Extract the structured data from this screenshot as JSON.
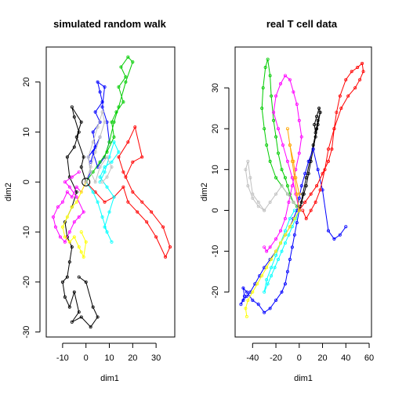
{
  "chart_data": [
    {
      "type": "line",
      "title": "simulated random walk",
      "xlabel": "dim1",
      "ylabel": "dim2",
      "xlim": [
        -17,
        38
      ],
      "ylim": [
        -31,
        27
      ],
      "xticks": [
        -10,
        0,
        10,
        20,
        30
      ],
      "yticks": [
        -30,
        -20,
        -10,
        0,
        10,
        20
      ],
      "circle": [
        0,
        0
      ],
      "grid": false,
      "series": [
        {
          "color": "#000000",
          "x": [
            0,
            -2,
            -1,
            -4,
            -2,
            -6,
            -5,
            -3,
            -5,
            -8,
            -7,
            -4,
            -6,
            -9,
            -8,
            -6,
            -7,
            -8,
            -10,
            -9,
            -7,
            -5,
            -3,
            -6,
            -2,
            2,
            5,
            3,
            0,
            -3
          ],
          "y": [
            0,
            3,
            5,
            9,
            12,
            15,
            13,
            10,
            7,
            5,
            1,
            -2,
            -5,
            -8,
            -11,
            -13,
            -16,
            -19,
            -20,
            -23,
            -25,
            -22,
            -26,
            -28,
            -27,
            -29,
            -27,
            -25,
            -20,
            -19
          ]
        },
        {
          "color": "#0000ff",
          "x": [
            0,
            2,
            1,
            4,
            3,
            6,
            4,
            7,
            6,
            5,
            8,
            7,
            9,
            10,
            8,
            5,
            3,
            6,
            4,
            2
          ],
          "y": [
            0,
            2,
            5,
            7,
            10,
            12,
            14,
            16,
            18,
            20,
            19,
            15,
            12,
            8,
            5,
            3,
            6,
            9,
            7,
            4
          ]
        },
        {
          "color": "#00cc00",
          "x": [
            0,
            3,
            6,
            9,
            12,
            11,
            13,
            16,
            14,
            17,
            15,
            18,
            20,
            17,
            14,
            12,
            10,
            8
          ],
          "y": [
            0,
            2,
            4,
            6,
            9,
            12,
            14,
            16,
            19,
            21,
            23,
            25,
            24,
            20,
            15,
            12,
            8,
            5
          ]
        },
        {
          "color": "#ff0000",
          "x": [
            0,
            4,
            8,
            12,
            16,
            18,
            22,
            26,
            30,
            34,
            36,
            33,
            28,
            24,
            20,
            16,
            14,
            18,
            21,
            24,
            20,
            17
          ],
          "y": [
            0,
            -2,
            -4,
            -3,
            -1,
            -4,
            -6,
            -8,
            -11,
            -15,
            -13,
            -9,
            -6,
            -4,
            -2,
            2,
            5,
            8,
            11,
            5,
            4,
            1
          ]
        },
        {
          "color": "#00ffff",
          "x": [
            0,
            3,
            5,
            7,
            9,
            11,
            8,
            10,
            12,
            9,
            6,
            8,
            11,
            14,
            12,
            10,
            8,
            6
          ],
          "y": [
            0,
            -2,
            -4,
            -7,
            -10,
            -12,
            -9,
            -6,
            -3,
            -1,
            1,
            3,
            4,
            6,
            8,
            5,
            2,
            0
          ]
        },
        {
          "color": "#ff00ff",
          "x": [
            0,
            -2,
            -4,
            -6,
            -8,
            -10,
            -12,
            -14,
            -13,
            -11,
            -9,
            -7,
            -5,
            -3,
            -1,
            -4,
            -7,
            -9,
            -6,
            -3
          ],
          "y": [
            0,
            -2,
            -1,
            -3,
            -2,
            -4,
            -5,
            -7,
            -9,
            -11,
            -12,
            -10,
            -8,
            -7,
            -6,
            -3,
            -1,
            0,
            1,
            2
          ]
        },
        {
          "color": "#ffff00",
          "x": [
            0,
            -2,
            -4,
            -6,
            -8,
            -10,
            -9,
            -7,
            -5,
            -3,
            -2,
            -1,
            0,
            -2
          ],
          "y": [
            0,
            -2,
            -4,
            -5,
            -7,
            -9,
            -11,
            -12,
            -11,
            -13,
            -14,
            -15,
            -12,
            -10
          ]
        },
        {
          "color": "#c0c0c0",
          "x": [
            0,
            2,
            4,
            6,
            8,
            7,
            5,
            3,
            1,
            2,
            4,
            6,
            9,
            11,
            9,
            7
          ],
          "y": [
            0,
            3,
            6,
            9,
            12,
            14,
            11,
            8,
            5,
            2,
            0,
            3,
            5,
            3,
            1,
            0
          ]
        }
      ]
    },
    {
      "type": "line",
      "title": "real T cell data",
      "xlabel": "dim1",
      "ylabel": "dim2",
      "xlim": [
        -55,
        62
      ],
      "ylim": [
        -31,
        40
      ],
      "xticks": [
        -40,
        -20,
        0,
        20,
        40,
        60
      ],
      "yticks": [
        -20,
        -10,
        0,
        10,
        20,
        30
      ],
      "grid": false,
      "series": [
        {
          "color": "#000000",
          "x": [
            0,
            2,
            4,
            6,
            8,
            10,
            12,
            14,
            16,
            18,
            17,
            15,
            13,
            14,
            16,
            18,
            15,
            12,
            9,
            6,
            3,
            1,
            0
          ],
          "y": [
            0,
            2,
            4,
            6,
            9,
            12,
            15,
            18,
            21,
            24,
            25,
            23,
            21,
            19,
            22,
            24,
            20,
            16,
            12,
            8,
            4,
            1,
            0
          ]
        },
        {
          "color": "#0000ff",
          "x": [
            0,
            -2,
            -4,
            -6,
            -8,
            -10,
            -12,
            -15,
            -20,
            -25,
            -30,
            -35,
            -40,
            -45,
            -48,
            -47,
            -50,
            -48,
            -45,
            -42,
            -38,
            -34,
            -30,
            -25,
            -20,
            -16,
            -12,
            -8,
            -5,
            -2,
            0,
            2,
            5,
            8,
            12,
            16,
            20,
            25,
            30,
            35,
            40
          ],
          "y": [
            0,
            -3,
            -6,
            -9,
            -12,
            -15,
            -18,
            -20,
            -22,
            -24,
            -25,
            -23,
            -22,
            -20,
            -19,
            -21,
            -23,
            -22,
            -21,
            -20,
            -18,
            -16,
            -14,
            -12,
            -10,
            -8,
            -6,
            -4,
            -2,
            0,
            3,
            6,
            9,
            12,
            15,
            10,
            5,
            -5,
            -7,
            -6,
            -4
          ]
        },
        {
          "color": "#00cc00",
          "x": [
            0,
            -5,
            -10,
            -15,
            -20,
            -25,
            -28,
            -30,
            -32,
            -31,
            -29,
            -27,
            -25,
            -24,
            -22,
            -20,
            -18,
            -15,
            -12,
            -10,
            -8,
            -5,
            -2,
            0
          ],
          "y": [
            0,
            2,
            4,
            6,
            8,
            12,
            16,
            20,
            25,
            30,
            35,
            37,
            33,
            28,
            22,
            18,
            14,
            10,
            8,
            6,
            4,
            2,
            1,
            0
          ]
        },
        {
          "color": "#ff0000",
          "x": [
            0,
            5,
            10,
            15,
            20,
            25,
            28,
            30,
            32,
            35,
            40,
            45,
            50,
            54,
            55,
            52,
            48,
            42,
            36,
            30,
            25,
            22,
            18,
            14,
            10,
            6,
            3
          ],
          "y": [
            0,
            2,
            4,
            6,
            9,
            12,
            15,
            20,
            24,
            28,
            32,
            34,
            35,
            36,
            34,
            32,
            30,
            28,
            25,
            20,
            15,
            10,
            5,
            2,
            0,
            -2,
            0
          ]
        },
        {
          "color": "#00ffff",
          "x": [
            0,
            -3,
            -6,
            -9,
            -12,
            -15,
            -18,
            -21,
            -24,
            -27,
            -30,
            -28,
            -24,
            -20,
            -16,
            -12,
            -8,
            -4
          ],
          "y": [
            0,
            -2,
            -4,
            -6,
            -8,
            -10,
            -12,
            -14,
            -16,
            -18,
            -20,
            -17,
            -14,
            -11,
            -8,
            -5,
            -2,
            0
          ]
        },
        {
          "color": "#ff00ff",
          "x": [
            0,
            -3,
            -6,
            -10,
            -14,
            -18,
            -22,
            -20,
            -16,
            -12,
            -8,
            -5,
            -2,
            0,
            2,
            0,
            -3,
            -6,
            -9,
            -12,
            -16,
            -20,
            -25,
            -28,
            -30
          ],
          "y": [
            0,
            4,
            8,
            12,
            16,
            20,
            24,
            28,
            31,
            33,
            32,
            29,
            26,
            22,
            18,
            14,
            10,
            6,
            2,
            -2,
            -5,
            -7,
            -9,
            -10,
            -9
          ]
        },
        {
          "color": "#ffff00",
          "x": [
            0,
            -4,
            -8,
            -12,
            -16,
            -20,
            -24,
            -28,
            -32,
            -36,
            -40,
            -44,
            -46,
            -45
          ],
          "y": [
            0,
            -2,
            -4,
            -6,
            -8,
            -10,
            -12,
            -14,
            -16,
            -18,
            -20,
            -22,
            -24,
            -26
          ]
        },
        {
          "color": "#c0c0c0",
          "x": [
            0,
            -5,
            -10,
            -15,
            -20,
            -25,
            -30,
            -35,
            -40,
            -42,
            -44,
            -46,
            -44,
            -40,
            -35,
            -30
          ],
          "y": [
            0,
            2,
            4,
            6,
            4,
            2,
            0,
            2,
            4,
            8,
            12,
            10,
            6,
            3,
            1,
            0
          ]
        },
        {
          "color": "#ffa500",
          "x": [
            0,
            -2,
            -4,
            -6,
            -8,
            -10,
            -8,
            -5,
            -3,
            0
          ],
          "y": [
            0,
            4,
            8,
            12,
            16,
            20,
            16,
            12,
            8,
            4
          ]
        }
      ]
    }
  ]
}
